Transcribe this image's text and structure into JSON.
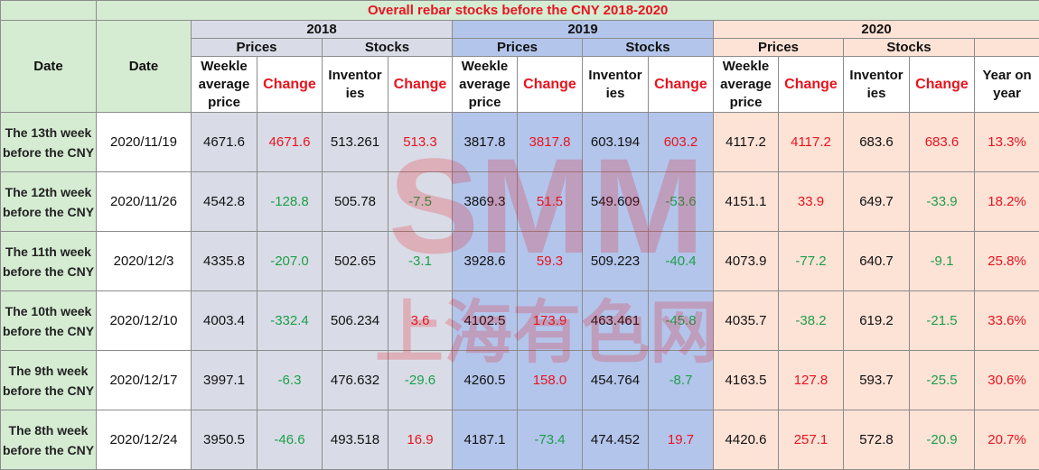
{
  "title": "Overall rebar stocks before the CNY 2018-2020",
  "headers": {
    "date1": "Date",
    "date2": "Date",
    "years": [
      "2018",
      "2019",
      "2020"
    ],
    "prices": "Prices",
    "stocks": "Stocks",
    "weekly_avg": "Weekle average price",
    "change": "Change",
    "inventories": "Inventor ies",
    "yoy": "Year on year"
  },
  "rows": [
    {
      "week": "The 13th week before the CNY",
      "date": "2020/11/19",
      "p18": "4671.6",
      "pc18": "4671.6",
      "s18": "513.261",
      "sc18": "513.3",
      "p19": "3817.8",
      "pc19": "3817.8",
      "s19": "603.194",
      "sc19": "603.2",
      "p20": "4117.2",
      "pc20": "4117.2",
      "s20": "683.6",
      "sc20": "683.6",
      "yoy": "13.3%"
    },
    {
      "week": "The 12th week before the CNY",
      "date": "2020/11/26",
      "p18": "4542.8",
      "pc18": "-128.8",
      "s18": "505.78",
      "sc18": "-7.5",
      "p19": "3869.3",
      "pc19": "51.5",
      "s19": "549.609",
      "sc19": "-53.6",
      "p20": "4151.1",
      "pc20": "33.9",
      "s20": "649.7",
      "sc20": "-33.9",
      "yoy": "18.2%"
    },
    {
      "week": "The 11th week before the CNY",
      "date": "2020/12/3",
      "p18": "4335.8",
      "pc18": "-207.0",
      "s18": "502.65",
      "sc18": "-3.1",
      "p19": "3928.6",
      "pc19": "59.3",
      "s19": "509.223",
      "sc19": "-40.4",
      "p20": "4073.9",
      "pc20": "-77.2",
      "s20": "640.7",
      "sc20": "-9.1",
      "yoy": "25.8%"
    },
    {
      "week": "The 10th week before the CNY",
      "date": "2020/12/10",
      "p18": "4003.4",
      "pc18": "-332.4",
      "s18": "506.234",
      "sc18": "3.6",
      "p19": "4102.5",
      "pc19": "173.9",
      "s19": "463.461",
      "sc19": "-45.8",
      "p20": "4035.7",
      "pc20": "-38.2",
      "s20": "619.2",
      "sc20": "-21.5",
      "yoy": "33.6%"
    },
    {
      "week": "The 9th week before the CNY",
      "date": "2020/12/17",
      "p18": "3997.1",
      "pc18": "-6.3",
      "s18": "476.632",
      "sc18": "-29.6",
      "p19": "4260.5",
      "pc19": "158.0",
      "s19": "454.764",
      "sc19": "-8.7",
      "p20": "4163.5",
      "pc20": "127.8",
      "s20": "593.7",
      "sc20": "-25.5",
      "yoy": "30.6%"
    },
    {
      "week": "The 8th week before the CNY",
      "date": "2020/12/24",
      "p18": "3950.5",
      "pc18": "-46.6",
      "s18": "493.518",
      "sc18": "16.9",
      "p19": "4187.1",
      "pc19": "-73.4",
      "s19": "474.452",
      "sc19": "19.7",
      "p20": "4420.6",
      "pc20": "257.1",
      "s20": "572.8",
      "sc20": "-20.9",
      "yoy": "20.7%"
    }
  ],
  "watermark": {
    "brand": "SMM",
    "chinese": "上海有色网",
    "color": "#e8141e"
  }
}
